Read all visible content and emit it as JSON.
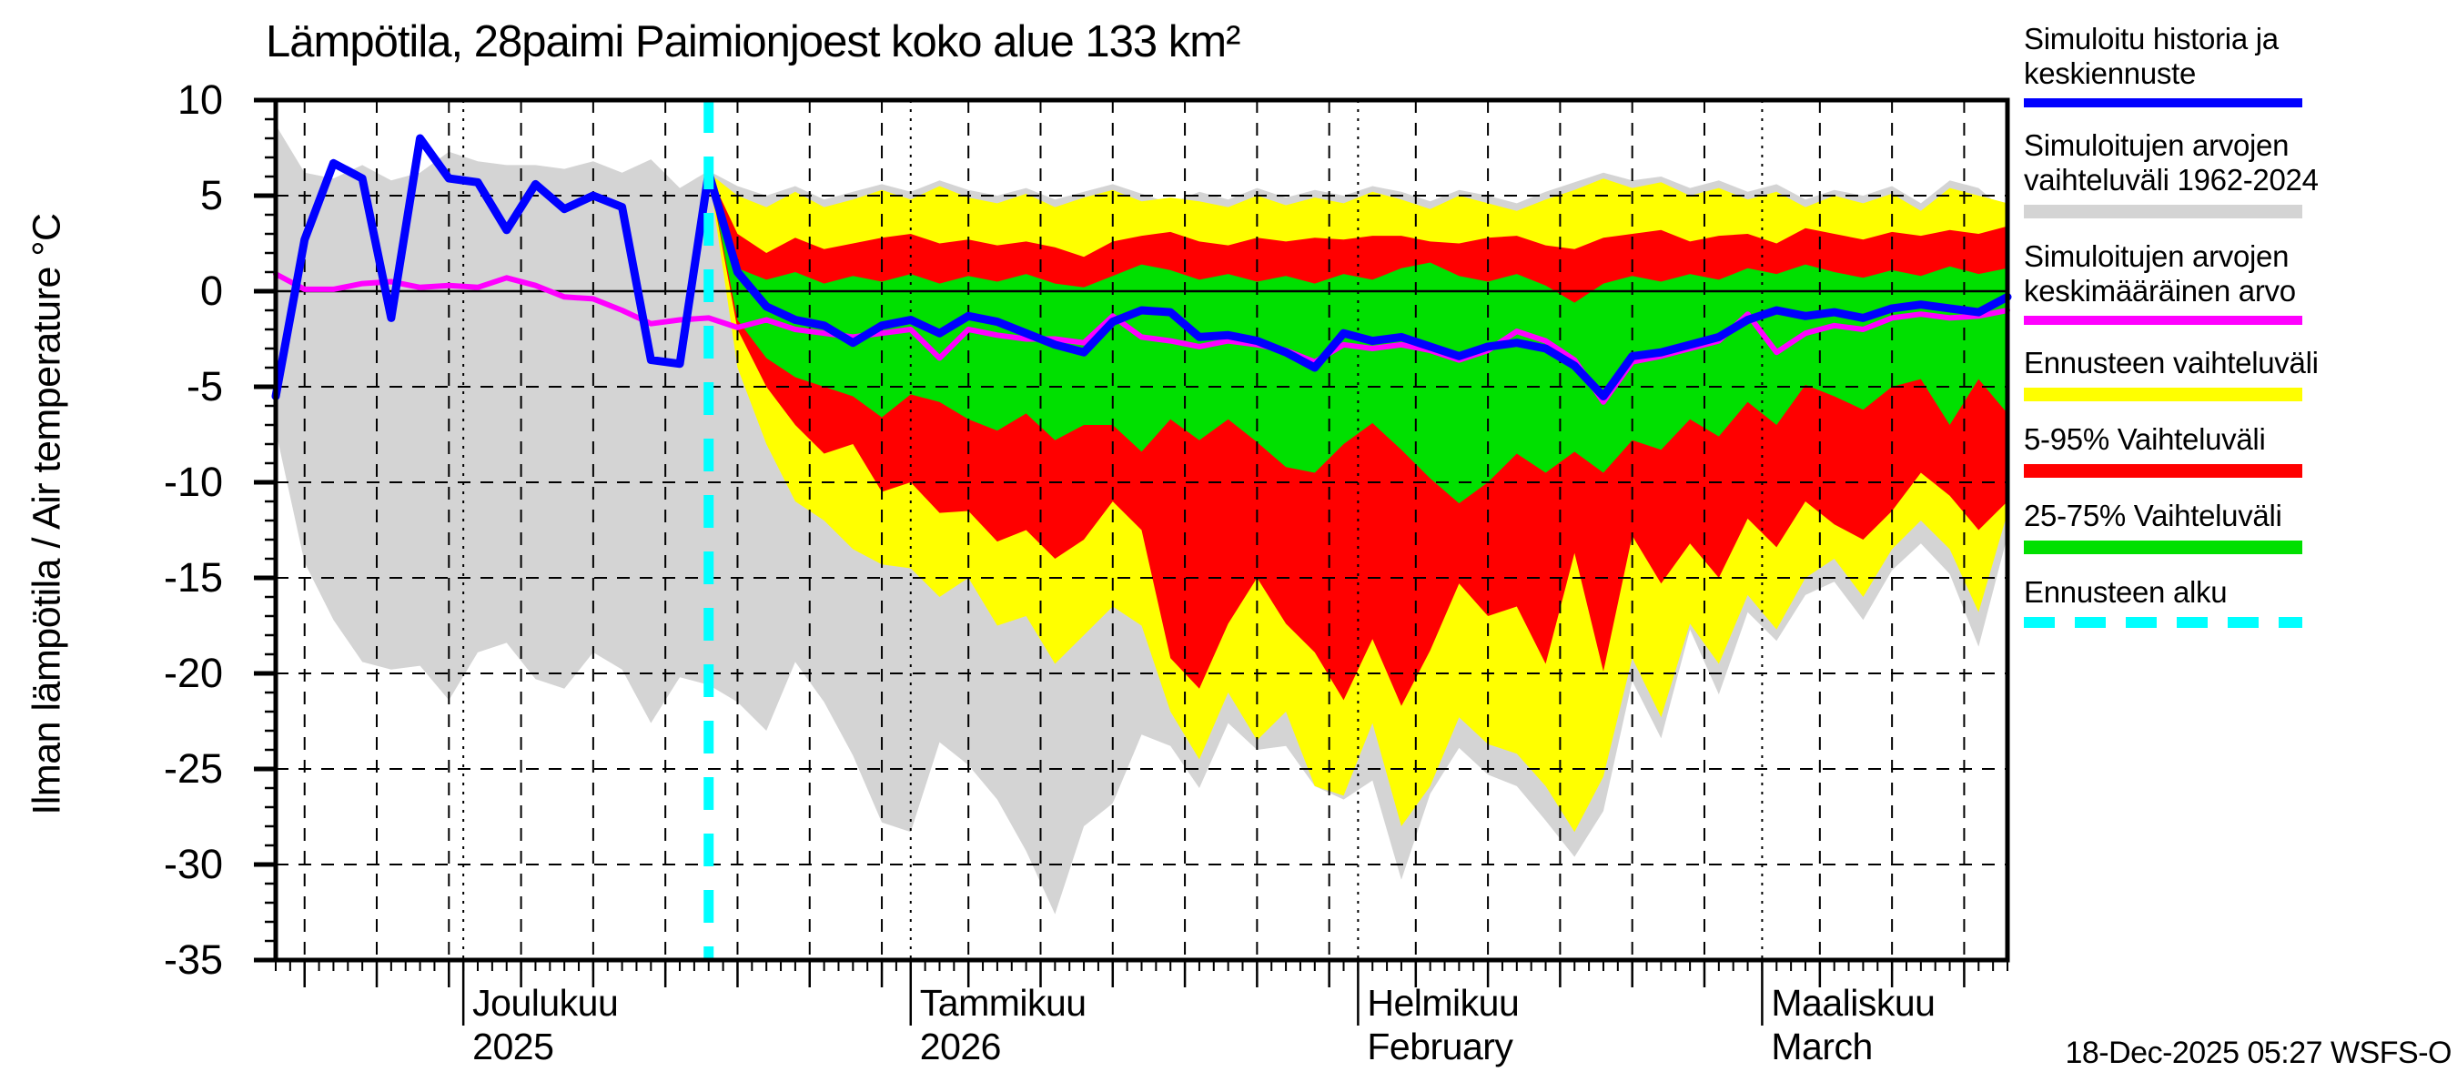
{
  "title": "Lämpötila, 28paimi Paimionjoest koko alue 133 km²",
  "y_axis": {
    "label": "Ilman lämpötila / Air temperature    °C",
    "ticks": [
      10,
      5,
      0,
      -5,
      -10,
      -15,
      -20,
      -25,
      -30,
      -35
    ],
    "min": -35,
    "max": 10
  },
  "footer": "18-Dec-2025 05:27 WSFS-O",
  "colors": {
    "history_line": "#0000ff",
    "history_range": "#d4d4d4",
    "sim_mean": "#ff00ff",
    "forecast_range": "#ffff00",
    "range_5_95": "#ff0000",
    "range_25_75": "#00e000",
    "forecast_start": "#00ffff",
    "grid": "#000000"
  },
  "legend": [
    {
      "label": "Simuloitu historia ja keskiennuste",
      "color": "#0000ff",
      "kind": "line"
    },
    {
      "label": "Simuloitujen arvojen vaihteluväli 1962-2024",
      "color": "#d4d4d4",
      "kind": "band"
    },
    {
      "label": "Simuloitujen arvojen keskimääräinen arvo",
      "color": "#ff00ff",
      "kind": "line"
    },
    {
      "label": "Ennusteen vaihteluväli",
      "color": "#ffff00",
      "kind": "band"
    },
    {
      "label": "5-95% Vaihteluväli",
      "color": "#ff0000",
      "kind": "band"
    },
    {
      "label": "25-75% Vaihteluväli",
      "color": "#00e000",
      "kind": "band"
    },
    {
      "label": "Ennusteen alku",
      "color": "#00ffff",
      "kind": "dashed"
    }
  ],
  "chart_data": {
    "type": "area",
    "title": "Lämpötila, 28paimi Paimionjoest koko alue 133 km²",
    "ylabel": "Ilman lämpötila / Air temperature (°C)",
    "ylim": [
      -35,
      10
    ],
    "yticks": [
      10,
      5,
      0,
      -5,
      -10,
      -15,
      -20,
      -25,
      -30,
      -35
    ],
    "x_domain_days": [
      0,
      120
    ],
    "forecast_start_day": 30,
    "months": [
      {
        "label1": "Joulukuu",
        "label2": "2025",
        "day": 13
      },
      {
        "label1": "Tammikuu",
        "label2": "2026",
        "day": 44
      },
      {
        "label1": "Helmikuu",
        "label2": "February",
        "day": 75
      },
      {
        "label1": "Maaliskuu",
        "label2": "March",
        "day": 103
      }
    ],
    "grid_days_dashed": [
      2,
      7,
      12,
      17,
      22,
      27,
      32,
      37,
      42,
      48,
      53,
      58,
      63,
      68,
      73,
      79,
      84,
      89,
      94,
      99,
      107,
      112,
      117
    ],
    "grid_days_month_dotted": [
      13,
      44,
      75,
      103
    ],
    "x_history": {
      "start": 0,
      "step": 2,
      "count": 61
    },
    "x_forecast": {
      "start": 30,
      "step": 2,
      "count": 46
    },
    "bands": [
      {
        "name": "history-range-1962-2024",
        "color": "#d4d4d4",
        "x": "x_history",
        "hi": [
          8.7,
          6.2,
          5.9,
          6.6,
          5.8,
          6.2,
          7.3,
          6.8,
          6.6,
          6.6,
          6.4,
          6.8,
          6.2,
          6.9,
          5.4,
          6.3,
          5.5,
          5.0,
          5.5,
          4.8,
          5.2,
          5.6,
          5.2,
          5.8,
          5.3,
          5.0,
          5.4,
          4.8,
          5.2,
          5.6,
          5.1,
          4.6,
          5.2,
          4.8,
          5.4,
          4.9,
          5.3,
          5.0,
          5.5,
          5.2,
          4.7,
          5.3,
          5.0,
          4.6,
          5.2,
          5.7,
          6.2,
          5.8,
          6.0,
          5.4,
          5.8,
          5.2,
          5.6,
          4.8,
          5.3,
          5.0,
          5.5,
          4.6,
          5.8,
          5.4,
          4.1
        ],
        "lo": [
          -7.3,
          -14.2,
          -17.2,
          -19.4,
          -19.8,
          -19.6,
          -21.4,
          -18.9,
          -18.4,
          -20.3,
          -20.8,
          -18.9,
          -19.8,
          -22.6,
          -20.2,
          -20.6,
          -21.5,
          -23.0,
          -19.4,
          -21.5,
          -24.3,
          -27.8,
          -28.3,
          -23.6,
          -24.8,
          -26.6,
          -29.3,
          -32.6,
          -28.0,
          -26.8,
          -23.2,
          -23.8,
          -26.0,
          -22.6,
          -24.0,
          -23.8,
          -25.9,
          -26.6,
          -25.6,
          -30.8,
          -26.3,
          -23.9,
          -25.3,
          -25.9,
          -27.7,
          -29.6,
          -27.2,
          -20.4,
          -23.4,
          -17.7,
          -21.1,
          -16.8,
          -18.3,
          -15.9,
          -15.2,
          -17.2,
          -14.6,
          -13.2,
          -14.8,
          -18.6,
          -12.8
        ]
      },
      {
        "name": "forecast-range",
        "color": "#ffff00",
        "x": "x_forecast",
        "hi": [
          6.2,
          5.0,
          4.4,
          5.2,
          4.4,
          4.8,
          5.3,
          4.8,
          5.5,
          4.9,
          4.6,
          5.1,
          4.4,
          4.9,
          5.3,
          4.7,
          4.9,
          4.7,
          4.4,
          5.0,
          4.5,
          4.9,
          4.6,
          5.2,
          4.8,
          4.3,
          5.0,
          4.6,
          4.2,
          4.8,
          5.3,
          5.9,
          5.4,
          5.7,
          5.0,
          5.4,
          4.8,
          5.2,
          4.4,
          5.0,
          4.6,
          5.1,
          4.2,
          5.4,
          5.0,
          4.6
        ],
        "lo": [
          6.2,
          -4.0,
          -8.0,
          -11.0,
          -12.0,
          -13.5,
          -14.3,
          -14.5,
          -16.0,
          -15.0,
          -17.5,
          -17.0,
          -19.5,
          -18.0,
          -16.5,
          -17.5,
          -22.0,
          -24.5,
          -21.0,
          -23.5,
          -22.0,
          -25.9,
          -26.4,
          -22.6,
          -28.0,
          -25.9,
          -22.3,
          -23.7,
          -24.2,
          -25.9,
          -28.3,
          -25.4,
          -19.2,
          -22.3,
          -17.4,
          -19.5,
          -15.9,
          -17.7,
          -15.0,
          -14.0,
          -16.0,
          -13.5,
          -12.0,
          -13.5,
          -16.8,
          -11.6
        ]
      },
      {
        "name": "range-5-95",
        "color": "#ff0000",
        "x": "x_forecast",
        "hi": [
          6.2,
          3.0,
          2.0,
          2.8,
          2.2,
          2.5,
          2.8,
          3.0,
          2.5,
          2.7,
          2.4,
          2.6,
          2.3,
          1.8,
          2.6,
          2.9,
          3.1,
          2.6,
          2.4,
          2.8,
          2.6,
          2.8,
          2.7,
          2.9,
          2.9,
          2.6,
          2.5,
          2.8,
          2.9,
          2.4,
          2.2,
          2.8,
          3.0,
          3.2,
          2.6,
          2.9,
          3.0,
          2.5,
          3.3,
          3.0,
          2.7,
          3.1,
          2.9,
          3.2,
          3.0,
          3.4
        ],
        "lo": [
          6.2,
          -2.0,
          -5.0,
          -7.0,
          -8.5,
          -8.0,
          -10.5,
          -10.0,
          -11.6,
          -11.5,
          -13.1,
          -12.5,
          -14.0,
          -13.0,
          -11.0,
          -12.5,
          -19.2,
          -20.8,
          -17.4,
          -15.0,
          -17.4,
          -18.9,
          -21.4,
          -18.2,
          -21.7,
          -18.8,
          -15.3,
          -17.0,
          -16.5,
          -19.5,
          -13.7,
          -19.9,
          -12.8,
          -15.3,
          -13.2,
          -15.0,
          -11.9,
          -13.4,
          -11.0,
          -12.2,
          -13.0,
          -11.5,
          -9.5,
          -10.7,
          -12.5,
          -11.0
        ]
      },
      {
        "name": "range-25-75",
        "color": "#00e000",
        "x": "x_forecast",
        "hi": [
          6.2,
          1.2,
          0.6,
          1.0,
          0.4,
          0.8,
          0.5,
          0.9,
          0.4,
          0.8,
          0.5,
          0.9,
          0.4,
          0.2,
          0.8,
          1.4,
          1.1,
          0.6,
          0.9,
          0.5,
          0.8,
          0.4,
          0.9,
          0.6,
          1.2,
          1.5,
          0.8,
          0.5,
          0.9,
          0.3,
          -0.6,
          0.4,
          0.8,
          0.5,
          0.9,
          0.6,
          1.2,
          0.9,
          1.4,
          1.0,
          0.7,
          1.1,
          0.8,
          1.3,
          0.9,
          1.2
        ],
        "lo": [
          6.2,
          -1.5,
          -3.5,
          -4.5,
          -5.0,
          -5.5,
          -6.6,
          -5.4,
          -5.8,
          -6.7,
          -7.3,
          -6.4,
          -7.8,
          -7.0,
          -7.0,
          -8.4,
          -6.7,
          -7.8,
          -6.7,
          -7.9,
          -9.2,
          -9.5,
          -8.0,
          -6.9,
          -8.3,
          -9.8,
          -11.1,
          -10.0,
          -8.5,
          -9.5,
          -8.4,
          -9.5,
          -7.8,
          -8.3,
          -6.7,
          -7.6,
          -5.8,
          -7.0,
          -4.9,
          -5.5,
          -6.2,
          -5.0,
          -4.6,
          -7.0,
          -4.6,
          -6.4
        ]
      }
    ],
    "lines": [
      {
        "name": "simulated-mean",
        "color": "#ff00ff",
        "width": 6,
        "x": "x_history",
        "y": [
          0.9,
          0.1,
          0.1,
          0.4,
          0.5,
          0.2,
          0.3,
          0.2,
          0.7,
          0.3,
          -0.3,
          -0.4,
          -1.0,
          -1.7,
          -1.5,
          -1.4,
          -1.9,
          -1.5,
          -2.0,
          -2.2,
          -2.4,
          -2.2,
          -2.0,
          -3.5,
          -2.0,
          -2.3,
          -2.5,
          -2.5,
          -2.7,
          -1.3,
          -2.4,
          -2.6,
          -2.9,
          -2.6,
          -2.8,
          -3.1,
          -3.7,
          -2.8,
          -3.0,
          -2.8,
          -3.1,
          -3.6,
          -3.1,
          -2.1,
          -2.6,
          -3.6,
          -5.8,
          -3.7,
          -3.4,
          -3.0,
          -2.6,
          -1.2,
          -3.2,
          -2.2,
          -1.8,
          -2.0,
          -1.4,
          -1.2,
          -1.4,
          -1.3,
          -1.0
        ]
      },
      {
        "name": "history-and-median-forecast",
        "color": "#0000ff",
        "width": 9,
        "x": "x_history",
        "y": [
          -5.5,
          2.7,
          6.7,
          5.9,
          -1.4,
          8.0,
          5.9,
          5.7,
          3.2,
          5.6,
          4.3,
          5.0,
          4.4,
          -3.6,
          -3.8,
          6.2,
          1.0,
          -0.8,
          -1.5,
          -1.8,
          -2.7,
          -1.8,
          -1.5,
          -2.2,
          -1.3,
          -1.6,
          -2.2,
          -2.8,
          -3.2,
          -1.6,
          -1.0,
          -1.1,
          -2.4,
          -2.3,
          -2.6,
          -3.2,
          -4.0,
          -2.2,
          -2.6,
          -2.4,
          -2.9,
          -3.4,
          -2.9,
          -2.7,
          -3.0,
          -3.9,
          -5.5,
          -3.4,
          -3.2,
          -2.8,
          -2.4,
          -1.5,
          -1.0,
          -1.3,
          -1.1,
          -1.4,
          -0.9,
          -0.7,
          -0.9,
          -1.1,
          -0.3
        ]
      }
    ]
  }
}
